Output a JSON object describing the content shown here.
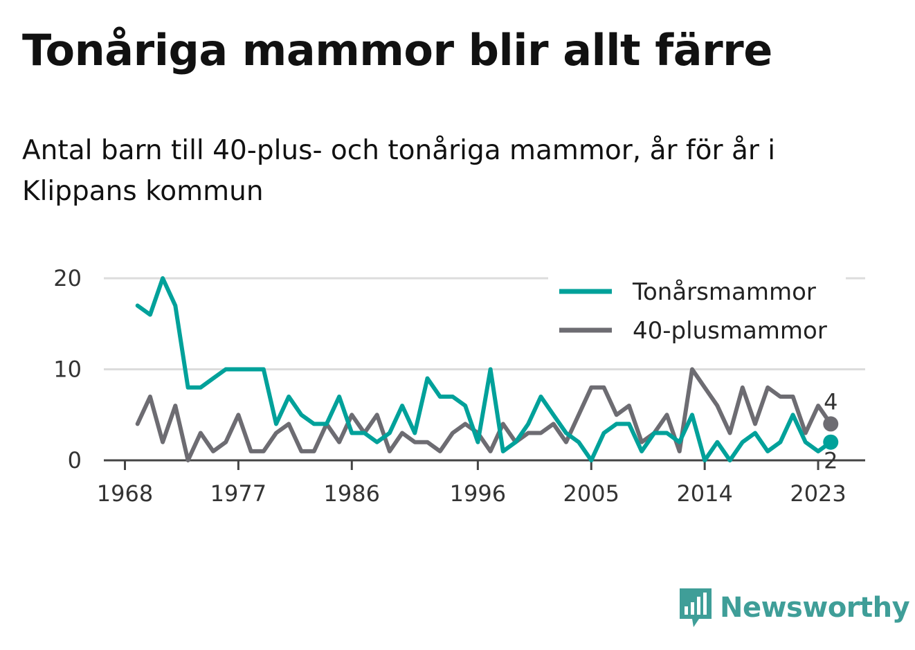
{
  "title": "Tonåriga mammor blir allt färre",
  "subtitle": "Antal barn till 40-plus- och tonåriga mammor, år för år i Klippans kommun",
  "brand": {
    "name": "Newsworthy",
    "icon": "newsworthy-logo-icon",
    "color": "#3f9e98"
  },
  "chart_data": {
    "type": "line",
    "x": [
      1969,
      1970,
      1971,
      1972,
      1973,
      1974,
      1975,
      1976,
      1977,
      1978,
      1979,
      1980,
      1981,
      1982,
      1983,
      1984,
      1985,
      1986,
      1987,
      1988,
      1989,
      1990,
      1991,
      1992,
      1993,
      1994,
      1995,
      1996,
      1997,
      1998,
      1999,
      2000,
      2001,
      2002,
      2003,
      2004,
      2005,
      2006,
      2007,
      2008,
      2009,
      2010,
      2011,
      2012,
      2013,
      2014,
      2015,
      2016,
      2017,
      2018,
      2019,
      2020,
      2021,
      2022,
      2023,
      2024
    ],
    "series": [
      {
        "name": "Tonårsmammor",
        "color": "#00a19a",
        "values": [
          17,
          16,
          20,
          17,
          8,
          8,
          9,
          10,
          10,
          10,
          10,
          4,
          7,
          5,
          4,
          4,
          7,
          3,
          3,
          2,
          3,
          6,
          3,
          9,
          7,
          7,
          6,
          2,
          10,
          1,
          2,
          4,
          7,
          5,
          3,
          2,
          0,
          3,
          4,
          4,
          1,
          3,
          3,
          2,
          5,
          0,
          2,
          0,
          2,
          3,
          1,
          2,
          5,
          2,
          1,
          2
        ]
      },
      {
        "name": "40-plusmammor",
        "color": "#6d6c72",
        "values": [
          4,
          7,
          2,
          6,
          0,
          3,
          1,
          2,
          5,
          1,
          1,
          3,
          4,
          1,
          1,
          4,
          2,
          5,
          3,
          5,
          1,
          3,
          2,
          2,
          1,
          3,
          4,
          3,
          1,
          4,
          2,
          3,
          3,
          4,
          2,
          5,
          8,
          8,
          5,
          6,
          2,
          3,
          5,
          1,
          10,
          8,
          6,
          3,
          8,
          4,
          8,
          7,
          7,
          3,
          6,
          4
        ]
      }
    ],
    "xticks": [
      "1968",
      "1977",
      "1986",
      "1996",
      "2005",
      "2014",
      "2023"
    ],
    "yticks": [
      "0",
      "10",
      "20"
    ],
    "ylim": [
      0,
      20
    ],
    "grid": true,
    "legend_position": "top-right",
    "end_labels": {
      "Tonårsmammor": "2",
      "40-plusmammor": "4"
    },
    "xlabel": "",
    "ylabel": ""
  }
}
